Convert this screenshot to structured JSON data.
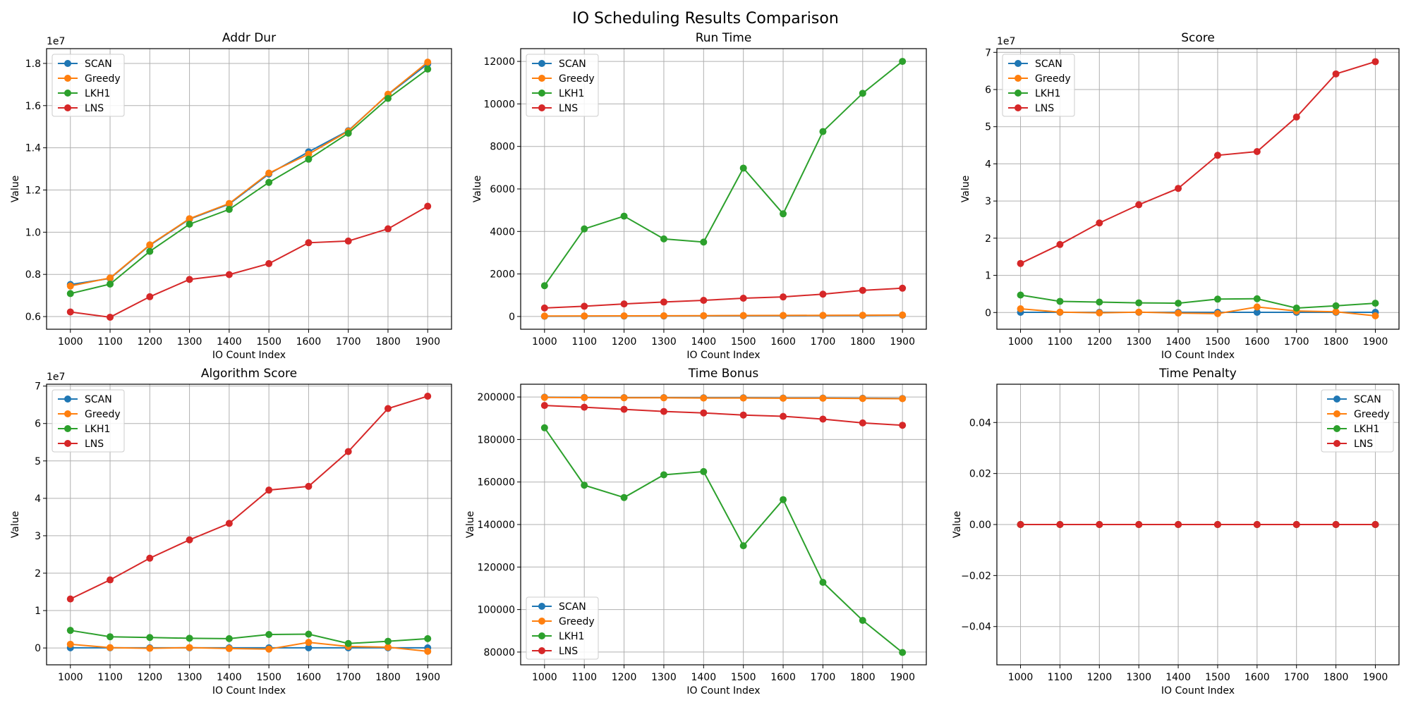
{
  "suptitle": "IO Scheduling Results Comparison",
  "colors": {
    "SCAN": "#1f77b4",
    "Greedy": "#ff7f0e",
    "LKH1": "#2ca02c",
    "LNS": "#d62728"
  },
  "chart_data": [
    {
      "type": "line",
      "title": "Addr Dur",
      "xlabel": "IO Count Index",
      "ylabel": "Value",
      "offset_text": "1e7",
      "x": [
        1000,
        1100,
        1200,
        1300,
        1400,
        1500,
        1600,
        1700,
        1800,
        1900
      ],
      "ylim": [
        0.54,
        1.87
      ],
      "yticks": [
        0.6,
        0.8,
        1.0,
        1.2,
        1.4,
        1.6,
        1.8
      ],
      "ytick_labels": [
        "0.6",
        "0.8",
        "1.0",
        "1.2",
        "1.4",
        "1.6",
        "1.8"
      ],
      "grid": true,
      "legend_loc": "upper-left",
      "series": [
        {
          "name": "SCAN",
          "values": [
            0.752,
            0.781,
            0.938,
            1.062,
            1.133,
            1.276,
            1.381,
            1.481,
            1.652,
            1.798
          ]
        },
        {
          "name": "Greedy",
          "values": [
            0.745,
            0.783,
            0.94,
            1.064,
            1.136,
            1.28,
            1.37,
            1.479,
            1.654,
            1.806
          ]
        },
        {
          "name": "LKH1",
          "values": [
            0.709,
            0.754,
            0.909,
            1.038,
            1.108,
            1.236,
            1.346,
            1.469,
            1.634,
            1.773
          ]
        },
        {
          "name": "LNS",
          "values": [
            0.622,
            0.597,
            0.694,
            0.776,
            0.799,
            0.851,
            0.95,
            0.958,
            1.016,
            1.123
          ]
        }
      ]
    },
    {
      "type": "line",
      "title": "Run Time",
      "xlabel": "IO Count Index",
      "ylabel": "Value",
      "offset_text": "",
      "x": [
        1000,
        1100,
        1200,
        1300,
        1400,
        1500,
        1600,
        1700,
        1800,
        1900
      ],
      "ylim": [
        -600,
        12600
      ],
      "yticks": [
        0,
        2000,
        4000,
        6000,
        8000,
        10000,
        12000
      ],
      "ytick_labels": [
        "0",
        "2000",
        "4000",
        "6000",
        "8000",
        "10000",
        "12000"
      ],
      "grid": true,
      "legend_loc": "upper-left",
      "series": [
        {
          "name": "SCAN",
          "values": [
            10,
            15,
            20,
            25,
            30,
            35,
            40,
            45,
            50,
            60
          ]
        },
        {
          "name": "Greedy",
          "values": [
            20,
            25,
            30,
            35,
            40,
            45,
            50,
            55,
            60,
            70
          ]
        },
        {
          "name": "LKH1",
          "values": [
            1450,
            4120,
            4720,
            3650,
            3500,
            6980,
            4830,
            8700,
            10500,
            12000
          ]
        },
        {
          "name": "LNS",
          "values": [
            400,
            480,
            590,
            680,
            760,
            860,
            920,
            1050,
            1230,
            1330
          ]
        }
      ]
    },
    {
      "type": "line",
      "title": "Score",
      "xlabel": "IO Count Index",
      "ylabel": "Value",
      "offset_text": "1e7",
      "x": [
        1000,
        1100,
        1200,
        1300,
        1400,
        1500,
        1600,
        1700,
        1800,
        1900
      ],
      "ylim": [
        -0.45,
        7.1
      ],
      "yticks": [
        0,
        1,
        2,
        3,
        4,
        5,
        6,
        7
      ],
      "ytick_labels": [
        "0",
        "1",
        "2",
        "3",
        "4",
        "5",
        "6",
        "7"
      ],
      "grid": true,
      "legend_loc": "upper-left",
      "series": [
        {
          "name": "SCAN",
          "values": [
            0.05,
            0.05,
            0.05,
            0.05,
            0.05,
            0.05,
            0.05,
            0.05,
            0.05,
            0.05
          ]
        },
        {
          "name": "Greedy",
          "values": [
            1.0,
            0.1,
            -0.1,
            0.1,
            -0.15,
            -0.3,
            1.5,
            0.4,
            0.2,
            -0.9
          ]
        },
        {
          "name": "LKH1",
          "values": [
            4.7,
            3.0,
            2.8,
            2.6,
            2.5,
            3.6,
            3.7,
            1.2,
            1.8,
            2.5
          ]
        },
        {
          "name": "LNS",
          "values": [
            13.2,
            18.3,
            24.1,
            29.0,
            33.4,
            42.3,
            43.3,
            52.6,
            64.2,
            67.5
          ]
        }
      ],
      "value_scale": 0.1
    },
    {
      "type": "line",
      "title": "Algorithm Score",
      "xlabel": "IO Count Index",
      "ylabel": "Value",
      "offset_text": "1e7",
      "x": [
        1000,
        1100,
        1200,
        1300,
        1400,
        1500,
        1600,
        1700,
        1800,
        1900
      ],
      "ylim": [
        -0.45,
        7.05
      ],
      "yticks": [
        0,
        1,
        2,
        3,
        4,
        5,
        6,
        7
      ],
      "ytick_labels": [
        "0",
        "1",
        "2",
        "3",
        "4",
        "5",
        "6",
        "7"
      ],
      "grid": true,
      "legend_loc": "upper-left",
      "series": [
        {
          "name": "SCAN",
          "values": [
            0.05,
            0.05,
            0.05,
            0.05,
            0.05,
            0.05,
            0.05,
            0.05,
            0.05,
            0.05
          ]
        },
        {
          "name": "Greedy",
          "values": [
            1.0,
            0.1,
            -0.1,
            0.1,
            -0.15,
            -0.3,
            1.5,
            0.4,
            0.2,
            -0.9
          ]
        },
        {
          "name": "LKH1",
          "values": [
            4.7,
            3.0,
            2.8,
            2.6,
            2.5,
            3.6,
            3.7,
            1.2,
            1.8,
            2.5
          ]
        },
        {
          "name": "LNS",
          "values": [
            13.1,
            18.2,
            24.0,
            28.9,
            33.3,
            42.2,
            43.2,
            52.5,
            64.0,
            67.3
          ]
        }
      ],
      "value_scale": 0.1
    },
    {
      "type": "line",
      "title": "Time Bonus",
      "xlabel": "IO Count Index",
      "ylabel": "Value",
      "offset_text": "",
      "x": [
        1000,
        1100,
        1200,
        1300,
        1400,
        1500,
        1600,
        1700,
        1800,
        1900
      ],
      "ylim": [
        74000,
        206000
      ],
      "yticks": [
        80000,
        100000,
        120000,
        140000,
        160000,
        180000,
        200000
      ],
      "ytick_labels": [
        "80000",
        "100000",
        "120000",
        "140000",
        "160000",
        "180000",
        "200000"
      ],
      "grid": true,
      "legend_loc": "lower-left",
      "series": [
        {
          "name": "SCAN",
          "values": [
            199900,
            199800,
            199700,
            199700,
            199600,
            199600,
            199500,
            199500,
            199400,
            199300
          ]
        },
        {
          "name": "Greedy",
          "values": [
            199800,
            199700,
            199600,
            199600,
            199500,
            199500,
            199400,
            199400,
            199300,
            199200
          ]
        },
        {
          "name": "LKH1",
          "values": [
            185500,
            158500,
            152700,
            163400,
            164900,
            130000,
            151700,
            112800,
            94900,
            79800
          ]
        },
        {
          "name": "LNS",
          "values": [
            196000,
            195200,
            194200,
            193200,
            192500,
            191500,
            190900,
            189600,
            187800,
            186700
          ]
        }
      ]
    },
    {
      "type": "line",
      "title": "Time Penalty",
      "xlabel": "IO Count Index",
      "ylabel": "Value",
      "offset_text": "",
      "x": [
        1000,
        1100,
        1200,
        1300,
        1400,
        1500,
        1600,
        1700,
        1800,
        1900
      ],
      "ylim": [
        -0.055,
        0.055
      ],
      "yticks": [
        -0.04,
        -0.02,
        0.0,
        0.02,
        0.04
      ],
      "ytick_labels": [
        "−0.04",
        "−0.02",
        "0.00",
        "0.02",
        "0.04"
      ],
      "grid": true,
      "legend_loc": "upper-right",
      "series": [
        {
          "name": "SCAN",
          "values": [
            0,
            0,
            0,
            0,
            0,
            0,
            0,
            0,
            0,
            0
          ]
        },
        {
          "name": "Greedy",
          "values": [
            0,
            0,
            0,
            0,
            0,
            0,
            0,
            0,
            0,
            0
          ]
        },
        {
          "name": "LKH1",
          "values": [
            0,
            0,
            0,
            0,
            0,
            0,
            0,
            0,
            0,
            0
          ]
        },
        {
          "name": "LNS",
          "values": [
            0,
            0,
            0,
            0,
            0,
            0,
            0,
            0,
            0,
            0
          ]
        }
      ]
    }
  ]
}
